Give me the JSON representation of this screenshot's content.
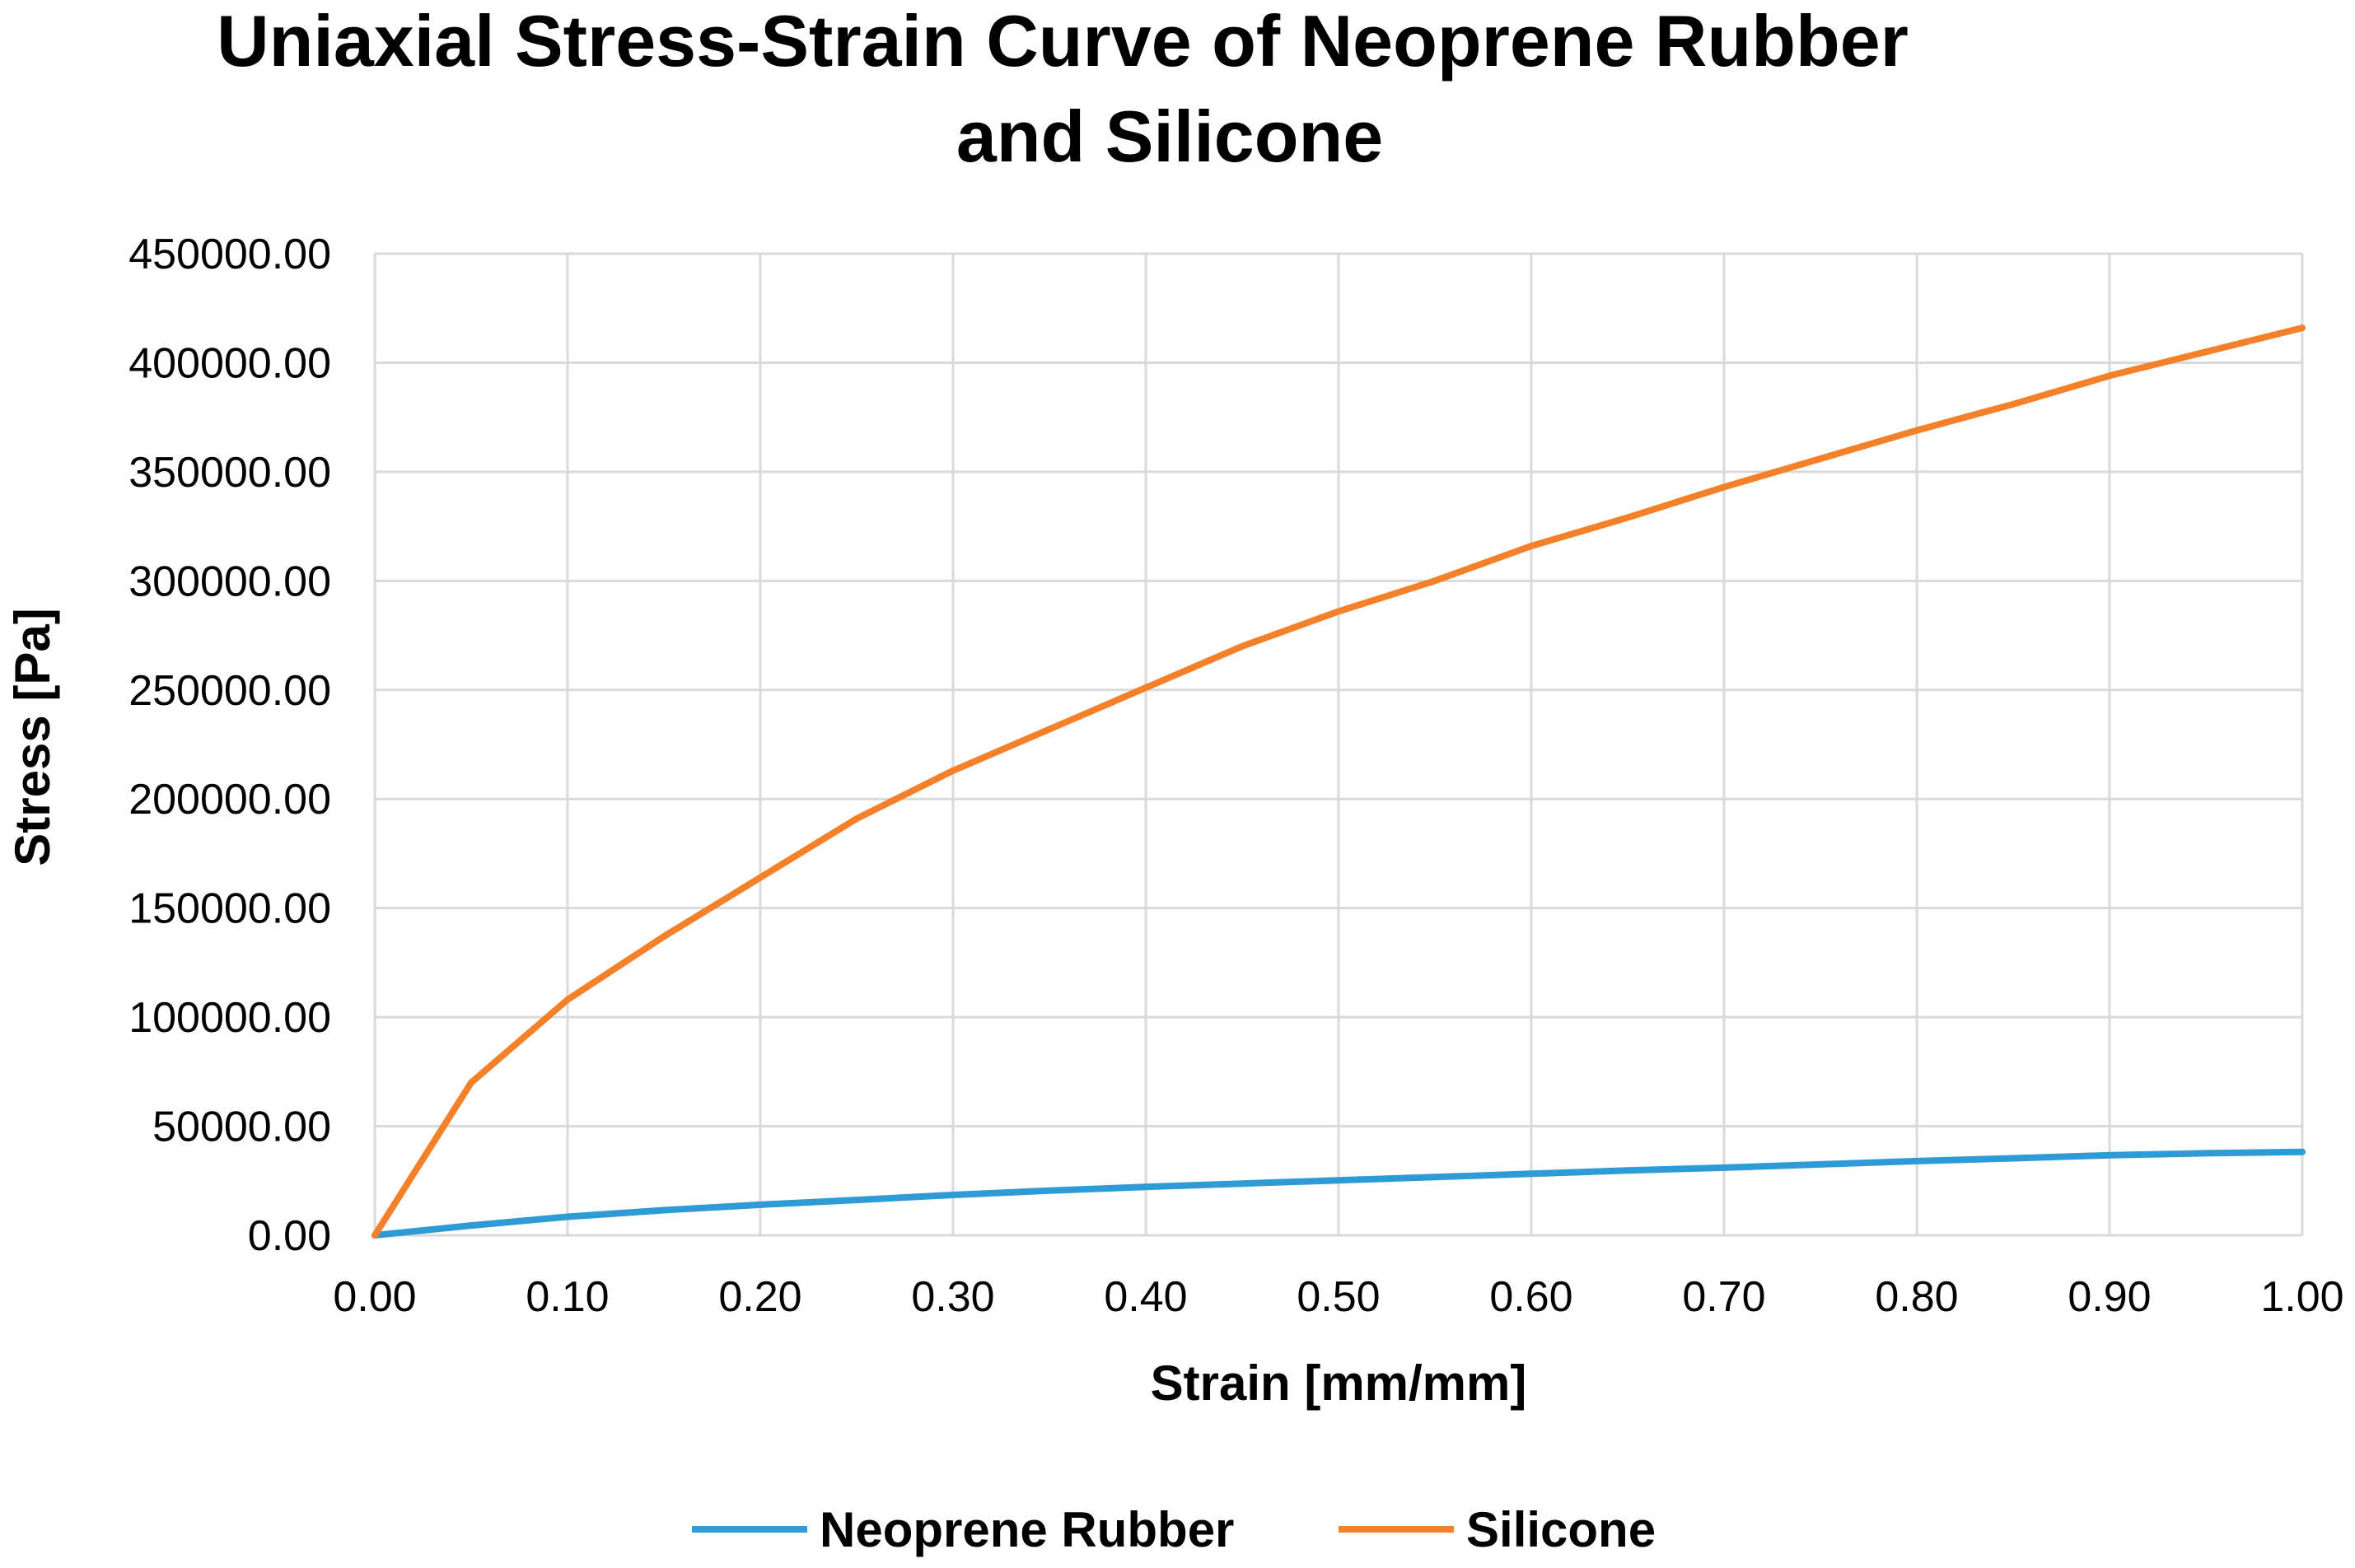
{
  "chart_data": {
    "type": "line",
    "title_lines": [
      "Uniaxial Stress-Strain Curve of Neoprene Rubber",
      "and Silicone"
    ],
    "xlabel": "Strain [mm/mm]",
    "ylabel": "Stress [Pa]",
    "xlim": [
      0,
      1
    ],
    "ylim": [
      0,
      450000
    ],
    "x_ticks": [
      "0.00",
      "0.10",
      "0.20",
      "0.30",
      "0.40",
      "0.50",
      "0.60",
      "0.70",
      "0.80",
      "0.90",
      "1.00"
    ],
    "y_ticks": [
      "0.00",
      "50000.00",
      "100000.00",
      "150000.00",
      "200000.00",
      "250000.00",
      "300000.00",
      "350000.00",
      "400000.00",
      "450000.00"
    ],
    "grid": true,
    "legend_position": "bottom",
    "series": [
      {
        "name": "Neoprene Rubber",
        "color": "#2e9bd6",
        "x": [
          0,
          0.05,
          0.1,
          0.15,
          0.2,
          0.25,
          0.3,
          0.35,
          0.4,
          0.45,
          0.5,
          0.55,
          0.6,
          0.65,
          0.7,
          0.75,
          0.8,
          0.85,
          0.9,
          0.95,
          1.0
        ],
        "y": [
          0,
          4500,
          8500,
          11500,
          14000,
          16200,
          18500,
          20500,
          22200,
          23700,
          25200,
          26700,
          28200,
          29700,
          31000,
          32500,
          34000,
          35300,
          36700,
          37600,
          38200
        ]
      },
      {
        "name": "Silicone",
        "color": "#f4812a",
        "x": [
          0,
          0.05,
          0.1,
          0.15,
          0.2,
          0.25,
          0.3,
          0.35,
          0.4,
          0.45,
          0.5,
          0.55,
          0.6,
          0.65,
          0.7,
          0.75,
          0.8,
          0.85,
          0.9,
          0.95,
          1.0
        ],
        "y": [
          0,
          70000,
          108000,
          137000,
          164000,
          191000,
          213000,
          232000,
          251000,
          270000,
          286000,
          300000,
          316000,
          329000,
          343000,
          356000,
          369000,
          381000,
          394000,
          405000,
          416000
        ]
      }
    ]
  }
}
